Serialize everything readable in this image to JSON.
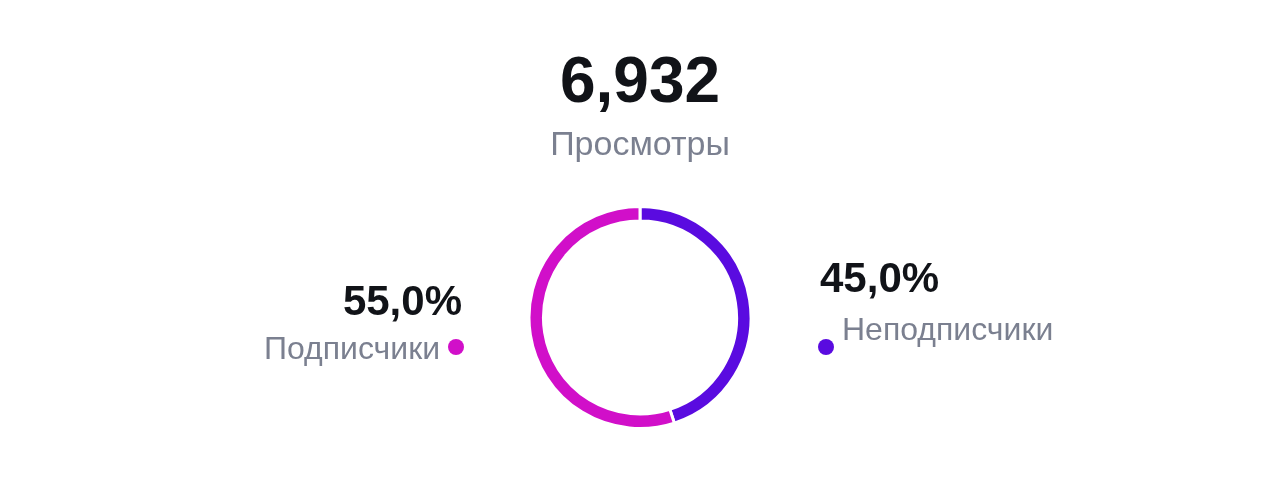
{
  "chart_data": {
    "type": "donut",
    "title": "6,932",
    "subtitle": "Просмотры",
    "categories": [
      "Неподписчики",
      "Подписчики"
    ],
    "values": [
      45.0,
      55.0
    ],
    "colors": [
      "#5a0be0",
      "#d10fc9"
    ],
    "value_labels": [
      "45,0%",
      "55,0%"
    ]
  }
}
